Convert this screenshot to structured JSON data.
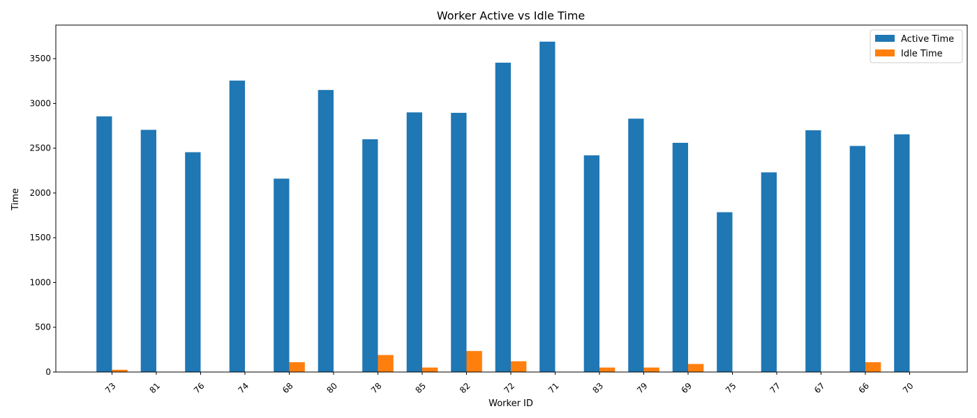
{
  "chart_data": {
    "type": "bar",
    "title": "Worker Active vs Idle Time",
    "xlabel": "Worker ID",
    "ylabel": "Time",
    "categories": [
      "73",
      "81",
      "76",
      "74",
      "68",
      "80",
      "78",
      "85",
      "82",
      "72",
      "71",
      "83",
      "79",
      "69",
      "75",
      "77",
      "67",
      "66",
      "70"
    ],
    "series": [
      {
        "name": "Active Time",
        "color": "#1f77b4",
        "values": [
          2855,
          2705,
          2455,
          3255,
          2160,
          3150,
          2600,
          2900,
          2895,
          3455,
          3690,
          2420,
          2830,
          2560,
          1785,
          2230,
          2700,
          2525,
          2655
        ]
      },
      {
        "name": "Idle Time",
        "color": "#ff7f0e",
        "values": [
          25,
          0,
          0,
          0,
          110,
          0,
          190,
          50,
          235,
          120,
          0,
          50,
          50,
          90,
          0,
          0,
          0,
          110,
          0
        ]
      }
    ],
    "ylim": [
      0,
      3875
    ],
    "yticks": [
      0,
      500,
      1000,
      1500,
      2000,
      2500,
      3000,
      3500
    ],
    "legend_position": "top-right",
    "grid": false
  }
}
